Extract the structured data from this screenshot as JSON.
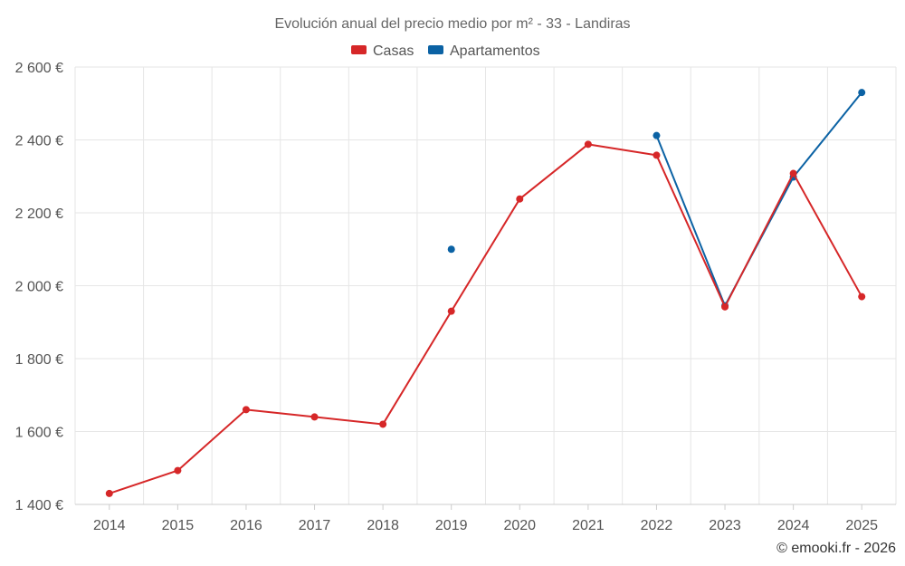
{
  "chart_data": {
    "type": "line",
    "title": "Evolución anual del precio medio por m² - 33 - Landiras",
    "categories": [
      "2014",
      "2015",
      "2016",
      "2017",
      "2018",
      "2019",
      "2020",
      "2021",
      "2022",
      "2023",
      "2024",
      "2025"
    ],
    "ylim": [
      1400,
      2600
    ],
    "yticks": [
      1400,
      1600,
      1800,
      2000,
      2200,
      2400,
      2600
    ],
    "ytick_labels": [
      "1 400 €",
      "1 600 €",
      "1 800 €",
      "2 000 €",
      "2 200 €",
      "2 400 €",
      "2 600 €"
    ],
    "grid": true,
    "legend_position": "top-center",
    "series": [
      {
        "name": "Casas",
        "color": "#d62728",
        "values": [
          1430,
          1493,
          1660,
          1640,
          1620,
          1930,
          2238,
          2388,
          2358,
          1942,
          2308,
          1970
        ]
      },
      {
        "name": "Apartamentos",
        "color": "#0b62a4",
        "values": [
          null,
          null,
          null,
          null,
          null,
          2100,
          null,
          null,
          2412,
          1945,
          2298,
          2530
        ]
      }
    ]
  },
  "credit": "© emooki.fr - 2026"
}
